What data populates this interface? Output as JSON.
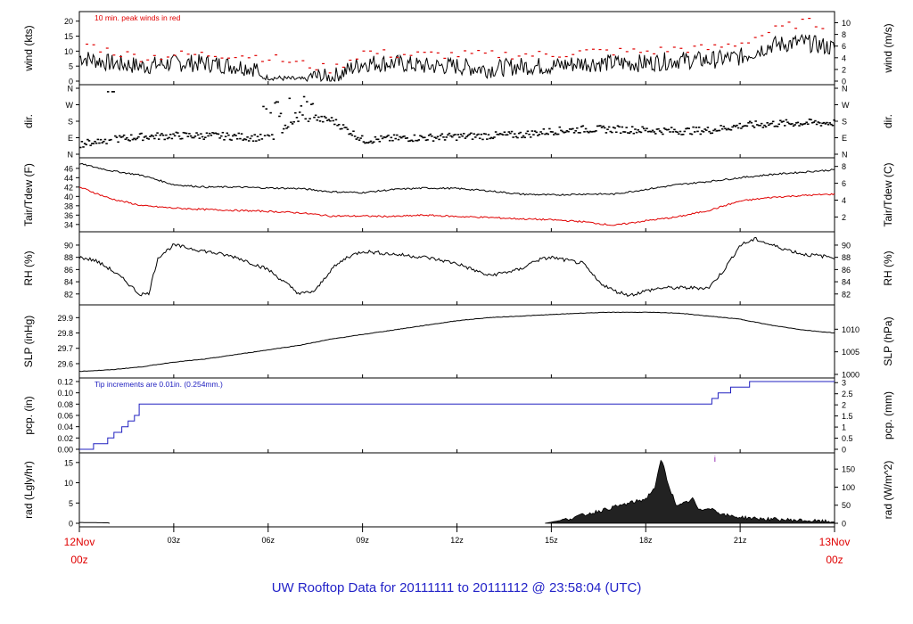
{
  "colors": {
    "axis": "#000000",
    "series": "#000000",
    "peak": "#e00000",
    "dew": "#e00000",
    "precip": "#2020c0",
    "time_label": "#e00000",
    "footer": "#2323c8",
    "radiation_fill": "#222222"
  },
  "footer": {
    "title": "UW Rooftop Data for 20111111  to  20111112 @ 23:58:04  (UTC)"
  },
  "chart_data": [
    {
      "id": "wind",
      "type": "line",
      "ylabel_left": "wind (kts)",
      "ylabel_right": "wind (m/s)",
      "annotation": "10 min. peak winds in red",
      "left_ticks": [
        "0",
        "5",
        "10",
        "15",
        "20"
      ],
      "right_ticks": [
        "0",
        "2",
        "4",
        "6",
        "8",
        "10"
      ],
      "ylim_left": [
        0,
        22
      ],
      "ylim_right": [
        0,
        11.3
      ],
      "x_hours": [
        0,
        1,
        2,
        3,
        4,
        5,
        6,
        7,
        8,
        9,
        10,
        11,
        12,
        13,
        14,
        15,
        16,
        17,
        18,
        19,
        20,
        21,
        22,
        23,
        24
      ],
      "series": [
        {
          "values": [
            8,
            6,
            5,
            6,
            6,
            5,
            4,
            2,
            1,
            6,
            6,
            5,
            5,
            4,
            5,
            5,
            6,
            6,
            6,
            7,
            7,
            8,
            12,
            13,
            11
          ],
          "style": "line"
        },
        {
          "values": [
            13,
            10,
            8,
            9,
            9,
            9,
            8,
            6,
            4,
            10,
            9,
            9,
            9,
            9,
            9,
            9,
            10,
            10,
            10,
            11,
            11,
            13,
            17,
            20,
            18
          ],
          "style": "points"
        }
      ]
    },
    {
      "id": "dir",
      "type": "scatter",
      "ylabel_left": "dir.",
      "ylabel_right": "dir.",
      "left_ticks": [
        "N",
        "E",
        "S",
        "W",
        "N"
      ],
      "right_ticks": [
        "N",
        "E",
        "S",
        "W",
        "N"
      ],
      "ylim_left": [
        0,
        360
      ],
      "x_hours": [
        0,
        1,
        2,
        3,
        4,
        5,
        6,
        7,
        8,
        9,
        10,
        11,
        12,
        13,
        14,
        15,
        16,
        17,
        18,
        19,
        20,
        21,
        22,
        23,
        24
      ],
      "series": [
        {
          "values": [
            60,
            85,
            100,
            105,
            105,
            100,
            90,
            200,
            190,
            80,
            90,
            95,
            100,
            105,
            110,
            130,
            140,
            140,
            135,
            130,
            135,
            160,
            170,
            175,
            175
          ],
          "style": "points"
        }
      ]
    },
    {
      "id": "temp",
      "type": "line",
      "ylabel_left": "Tair/Tdew (F)",
      "ylabel_right": "Tair/Tdew (C)",
      "left_ticks": [
        "34",
        "36",
        "38",
        "40",
        "42",
        "44",
        "46"
      ],
      "right_ticks": [
        "2",
        "4",
        "6",
        "8"
      ],
      "ylim_left": [
        33.2,
        47.5
      ],
      "ylim_right": [
        0.67,
        8.6
      ],
      "x_hours": [
        0,
        1,
        2,
        3,
        4,
        5,
        6,
        7,
        8,
        9,
        10,
        11,
        12,
        13,
        14,
        15,
        16,
        17,
        18,
        19,
        20,
        21,
        22,
        23,
        24
      ],
      "series": [
        {
          "name": "Tair",
          "values": [
            47,
            45.5,
            44.5,
            42.5,
            42,
            42,
            41.8,
            41.7,
            41,
            40.8,
            41.5,
            41.8,
            41.7,
            41.2,
            40.5,
            40.3,
            40.5,
            40.5,
            41.5,
            42.5,
            43.2,
            44,
            44.7,
            45.2,
            45.7
          ]
        },
        {
          "name": "Tdew",
          "values": [
            42,
            39.5,
            38,
            37.5,
            37.2,
            37,
            36.8,
            36.5,
            35.8,
            35.8,
            35.7,
            36,
            35.7,
            35.5,
            35.2,
            35,
            34.6,
            33.8,
            34.8,
            35.6,
            37,
            39,
            39.8,
            40.2,
            40.5
          ]
        }
      ]
    },
    {
      "id": "rh",
      "type": "line",
      "ylabel_left": "RH (%)",
      "ylabel_right": "RH (%)",
      "left_ticks": [
        "82",
        "84",
        "86",
        "88",
        "90"
      ],
      "right_ticks": [
        "82",
        "84",
        "86",
        "88",
        "90"
      ],
      "ylim_left": [
        80.8,
        91.6
      ],
      "ylim_right": [
        80.8,
        91.6
      ],
      "x_hours": [
        0,
        0.5,
        1,
        1.5,
        1.9,
        2.2,
        2.5,
        3,
        4,
        5,
        5.5,
        6,
        6.5,
        7,
        7.5,
        8,
        8.5,
        9,
        10,
        11,
        12,
        12.5,
        13,
        14,
        14.5,
        15,
        16,
        16.5,
        17,
        17.5,
        18,
        18.5,
        19,
        20,
        20.5,
        21,
        21.5,
        22,
        23,
        24
      ],
      "series": [
        {
          "values": [
            88,
            87.5,
            86,
            84,
            82,
            82,
            88,
            90,
            89,
            88,
            87,
            86,
            84,
            82,
            82.5,
            86,
            88,
            89,
            88.5,
            88,
            87,
            86,
            85,
            86,
            87.5,
            88,
            87,
            84,
            82.5,
            81.8,
            82.5,
            83,
            83,
            83,
            86,
            90,
            91,
            90,
            88.5,
            88
          ]
        }
      ]
    },
    {
      "id": "slp",
      "type": "line",
      "ylabel_left": "SLP (inHg)",
      "ylabel_right": "SLP (hPa)",
      "left_ticks": [
        "29.6",
        "29.7",
        "29.8",
        "29.9"
      ],
      "right_ticks": [
        "1000",
        "1005",
        "1010"
      ],
      "ylim_left": [
        29.53,
        29.96
      ],
      "ylim_right": [
        1000,
        1014.6
      ],
      "x_hours": [
        0,
        1,
        2,
        3,
        4,
        5,
        6,
        7,
        8,
        9,
        10,
        11,
        12,
        13,
        14,
        15,
        16,
        17,
        18,
        19,
        20,
        21,
        22,
        23,
        24
      ],
      "series": [
        {
          "values": [
            29.55,
            29.56,
            29.58,
            29.61,
            29.63,
            29.66,
            29.69,
            29.72,
            29.76,
            29.79,
            29.82,
            29.85,
            29.88,
            29.9,
            29.91,
            29.92,
            29.93,
            29.935,
            29.935,
            29.93,
            29.91,
            29.89,
            29.85,
            29.82,
            29.8
          ]
        }
      ]
    },
    {
      "id": "pcp",
      "type": "step",
      "ylabel_left": "pcp. (in)",
      "ylabel_right": "pcp. (mm)",
      "annotation": "Tip increments are 0.01in. (0.254mm.)",
      "left_ticks": [
        "0.00",
        "0.02",
        "0.04",
        "0.06",
        "0.08",
        "0.10",
        "0.12"
      ],
      "right_ticks": [
        "0",
        "0.5",
        "1",
        "1.5",
        "2",
        "2.5",
        "3"
      ],
      "ylim_left": [
        0,
        0.12
      ],
      "ylim_right": [
        0,
        3.05
      ],
      "x_hours": [
        0,
        0.45,
        0.9,
        1.1,
        1.35,
        1.55,
        1.75,
        1.9,
        20.1,
        20.3,
        20.7,
        21.3,
        24
      ],
      "series": [
        {
          "values": [
            0,
            0.01,
            0.02,
            0.03,
            0.04,
            0.05,
            0.06,
            0.08,
            0.09,
            0.1,
            0.11,
            0.12,
            0.12
          ]
        }
      ]
    },
    {
      "id": "rad",
      "type": "area",
      "ylabel_left": "rad (Lgly/hr)",
      "ylabel_right": "rad (W/m^2)",
      "left_ticks": [
        "0",
        "5",
        "10",
        "15"
      ],
      "right_ticks": [
        "0",
        "50",
        "100",
        "150"
      ],
      "ylim_left": [
        0,
        16.5
      ],
      "ylim_right": [
        0,
        185
      ],
      "x_hours": [
        0,
        0.95,
        14.8,
        15.5,
        16,
        16.5,
        17,
        17.5,
        18,
        18.3,
        18.5,
        18.7,
        19,
        19.5,
        19.7,
        20,
        20.5,
        21,
        21.5,
        22,
        23,
        24
      ],
      "series": [
        {
          "values": [
            0.2,
            0.1,
            0,
            1,
            2,
            3,
            4,
            5,
            6,
            9,
            16,
            10,
            4,
            6,
            3,
            4,
            2,
            1.5,
            1.2,
            1,
            0.7,
            0.3
          ]
        }
      ],
      "mark_label": "i",
      "mark_x": 20.2
    }
  ],
  "x_axis": {
    "ticks": [
      {
        "hour": 0,
        "label": "12Nov",
        "label2": "00z",
        "highlight": true
      },
      {
        "hour": 3,
        "label": "03z"
      },
      {
        "hour": 6,
        "label": "06z"
      },
      {
        "hour": 9,
        "label": "09z"
      },
      {
        "hour": 12,
        "label": "12z"
      },
      {
        "hour": 15,
        "label": "15z"
      },
      {
        "hour": 18,
        "label": "18z"
      },
      {
        "hour": 21,
        "label": "21z"
      },
      {
        "hour": 24,
        "label": "13Nov",
        "label2": "00z",
        "highlight": true
      }
    ]
  }
}
